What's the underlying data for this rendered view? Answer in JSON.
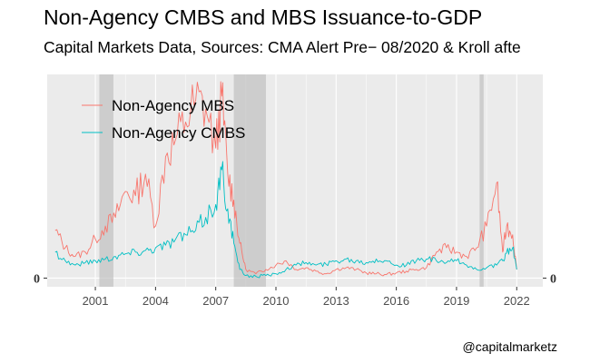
{
  "chart_data": {
    "type": "line",
    "title": "Non-Agency CMBS and MBS Issuance-to-GDP",
    "subtitle": "Capital Markets Data, Sources: CMA Alert Pre− 08/2020 & Kroll afte",
    "caption": "@capitalmarketz",
    "xlabel": "",
    "ylabel": "",
    "x_ticks": [
      2001,
      2004,
      2007,
      2010,
      2013,
      2016,
      2019,
      2022
    ],
    "y_ticks_left": [
      "0"
    ],
    "y_ticks_right": [
      "0"
    ],
    "xlim": [
      1998.6,
      2023.3
    ],
    "ylim": [
      -0.1,
      2.35
    ],
    "grid": true,
    "legend_position": "top-left inside",
    "recession_bands": [
      [
        2001.2,
        2001.9
      ],
      [
        2007.9,
        2009.5
      ],
      [
        2020.15,
        2020.35
      ]
    ],
    "series": [
      {
        "name": "Non-Agency MBS",
        "color": "#F8766D",
        "x": [
          1999.0,
          1999.5,
          2000.0,
          2000.5,
          2001.0,
          2001.5,
          2002.0,
          2002.5,
          2003.0,
          2003.5,
          2004.0,
          2004.5,
          2005.0,
          2005.5,
          2006.0,
          2006.5,
          2007.0,
          2007.3,
          2007.6,
          2007.9,
          2008.2,
          2008.5,
          2009.0,
          2009.5,
          2010.0,
          2010.5,
          2011.0,
          2011.5,
          2012.0,
          2012.5,
          2013.0,
          2013.5,
          2014.0,
          2014.5,
          2015.0,
          2015.5,
          2016.0,
          2016.5,
          2017.0,
          2017.5,
          2018.0,
          2018.5,
          2019.0,
          2019.5,
          2020.0,
          2020.5,
          2021.0,
          2021.3,
          2021.5,
          2021.8,
          2022.0
        ],
        "values": [
          0.55,
          0.35,
          0.25,
          0.3,
          0.45,
          0.6,
          0.7,
          1.0,
          0.95,
          1.2,
          0.6,
          1.4,
          1.6,
          1.8,
          2.05,
          1.95,
          1.5,
          2.1,
          1.2,
          0.9,
          0.4,
          0.1,
          0.05,
          0.1,
          0.15,
          0.2,
          0.1,
          0.12,
          0.08,
          0.05,
          0.1,
          0.12,
          0.1,
          0.06,
          0.05,
          0.04,
          0.06,
          0.08,
          0.1,
          0.12,
          0.3,
          0.35,
          0.3,
          0.25,
          0.35,
          0.6,
          1.1,
          0.3,
          0.6,
          0.5,
          0.1
        ]
      },
      {
        "name": "Non-Agency CMBS",
        "color": "#00BFC4",
        "x": [
          1999.0,
          1999.5,
          2000.0,
          2000.5,
          2001.0,
          2001.5,
          2002.0,
          2002.5,
          2003.0,
          2003.5,
          2004.0,
          2004.5,
          2005.0,
          2005.5,
          2006.0,
          2006.5,
          2007.0,
          2007.3,
          2007.6,
          2007.9,
          2008.2,
          2008.5,
          2009.0,
          2009.5,
          2010.0,
          2010.5,
          2011.0,
          2011.5,
          2012.0,
          2012.5,
          2013.0,
          2013.5,
          2014.0,
          2014.5,
          2015.0,
          2015.5,
          2016.0,
          2016.5,
          2017.0,
          2017.5,
          2018.0,
          2018.5,
          2019.0,
          2019.5,
          2020.0,
          2020.5,
          2021.0,
          2021.3,
          2021.5,
          2021.8,
          2022.0
        ],
        "values": [
          0.3,
          0.2,
          0.15,
          0.18,
          0.2,
          0.22,
          0.25,
          0.28,
          0.3,
          0.32,
          0.35,
          0.38,
          0.45,
          0.5,
          0.55,
          0.7,
          0.85,
          1.25,
          0.8,
          0.4,
          0.1,
          0.03,
          0.02,
          0.03,
          0.05,
          0.1,
          0.15,
          0.18,
          0.15,
          0.16,
          0.2,
          0.22,
          0.2,
          0.18,
          0.22,
          0.2,
          0.15,
          0.15,
          0.2,
          0.22,
          0.2,
          0.18,
          0.2,
          0.15,
          0.1,
          0.12,
          0.15,
          0.2,
          0.3,
          0.35,
          0.1
        ]
      }
    ]
  }
}
